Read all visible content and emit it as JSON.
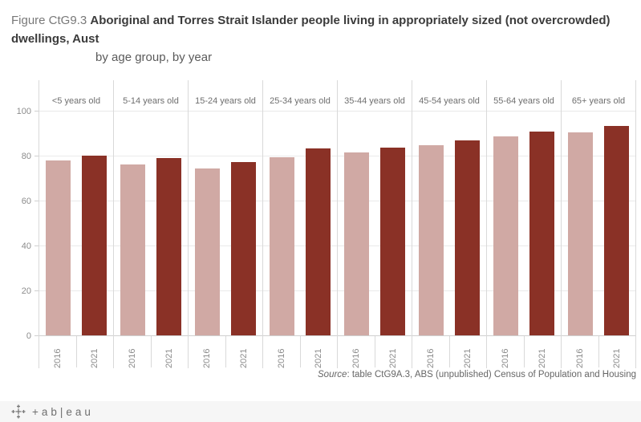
{
  "title": {
    "prefix": "Figure CtG9.3 ",
    "main": "Aboriginal and Torres Strait Islander people living in appropriately sized (not overcrowded) dwellings, Aust",
    "subtitle": "by age group, by year"
  },
  "chart_data": {
    "type": "bar",
    "categories": [
      "<5 years old",
      "5-14 years old",
      "15-24 years old",
      "25-34 years old",
      "35-44 years old",
      "45-54 years old",
      "55-64 years old",
      "65+ years old"
    ],
    "series": [
      {
        "name": "2016",
        "color": "#d0a9a4",
        "values": [
          78.0,
          76.2,
          74.4,
          79.4,
          81.3,
          84.5,
          88.6,
          90.4
        ]
      },
      {
        "name": "2021",
        "color": "#8a3126",
        "values": [
          79.9,
          78.8,
          77.0,
          83.1,
          83.6,
          86.8,
          90.6,
          93.1
        ]
      }
    ],
    "ylabel": "",
    "xlabel": "",
    "ylim": [
      0,
      100
    ],
    "yticks": [
      0,
      20,
      40,
      60,
      80,
      100
    ],
    "grid": true,
    "legend": "none",
    "panel_layout": "columns-by-age-group"
  },
  "footer": {
    "source_label": "Source",
    "source_rest": ": table CtG9A.3, ABS (unpublished) Census of Population and Housing"
  },
  "toolbar": {
    "wordmark": "+ab|eau"
  }
}
